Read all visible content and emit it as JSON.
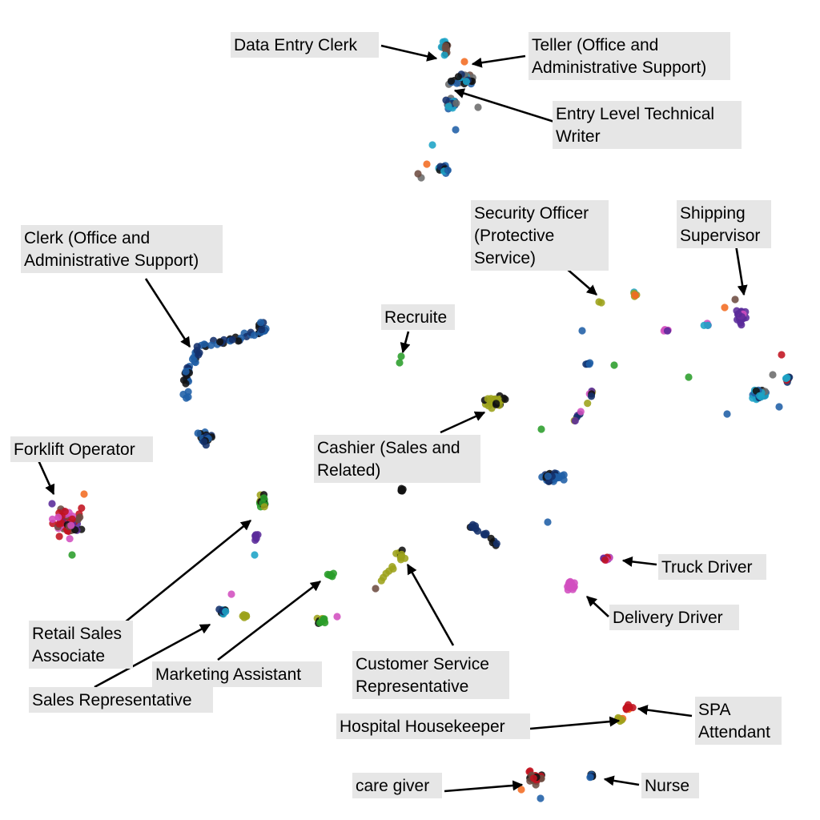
{
  "chart_data": {
    "type": "scatter",
    "title": "",
    "xlabel": "",
    "ylabel": "",
    "axes_visible": false,
    "grid": false,
    "legend": "none",
    "colors": {
      "navy": "#13306b",
      "blue": "#1f5fa6",
      "teal": "#1ba3c6",
      "black": "#111111",
      "olive": "#9ca21a",
      "green": "#2a9d2a",
      "purple": "#5a2a9a",
      "magenta": "#d14fbf",
      "red": "#c1121f",
      "orange": "#f26b21",
      "brown": "#6d4c41",
      "gray": "#6b6b6b"
    },
    "annotations": [
      {
        "id": "data-entry-clerk",
        "text": "Data Entry Clerk"
      },
      {
        "id": "teller",
        "text": "Teller (Office and Administrative Support)"
      },
      {
        "id": "technical-writer",
        "text": "Entry Level Technical Writer"
      },
      {
        "id": "clerk",
        "text": "Clerk (Office and Administrative Support)"
      },
      {
        "id": "security-officer",
        "text": "Security Officer (Protective Service)"
      },
      {
        "id": "shipping-supervisor",
        "text": "Shipping Supervisor"
      },
      {
        "id": "recruite",
        "text": "Recruite"
      },
      {
        "id": "cashier",
        "text": "Cashier (Sales and Related)"
      },
      {
        "id": "forklift-operator",
        "text": "Forklift Operator"
      },
      {
        "id": "retail-sales-associate",
        "text": "Retail Sales Associate"
      },
      {
        "id": "marketing-assistant",
        "text": "Marketing Assistant"
      },
      {
        "id": "sales-representative",
        "text": "Sales Representative"
      },
      {
        "id": "customer-service-representative",
        "text": "Customer Service Representative"
      },
      {
        "id": "truck-driver",
        "text": "Truck Driver"
      },
      {
        "id": "delivery-driver",
        "text": "Delivery Driver"
      },
      {
        "id": "spa-attendant",
        "text": "SPA Attendant"
      },
      {
        "id": "hospital-housekeeper",
        "text": "Hospital Housekeeper"
      },
      {
        "id": "care-giver",
        "text": "care giver"
      },
      {
        "id": "nurse",
        "text": "Nurse"
      }
    ]
  }
}
